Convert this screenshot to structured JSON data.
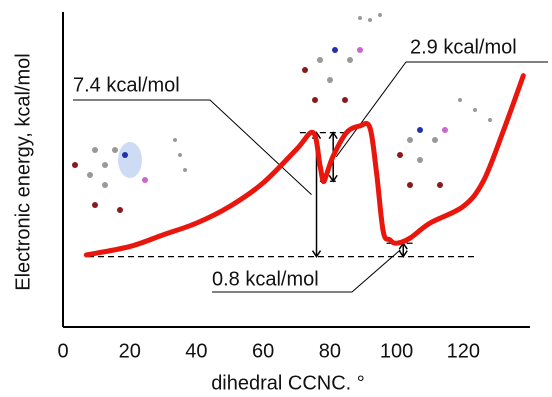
{
  "chart_data": {
    "type": "line",
    "xlabel": "dihedral CCNC. °",
    "ylabel": "Electronic energy, kcal/mol",
    "x": [
      7,
      20,
      30,
      40,
      50,
      60,
      70,
      75,
      77,
      78,
      79,
      81,
      85,
      89,
      92,
      94,
      96,
      98,
      100,
      104,
      110,
      120,
      126,
      132,
      138
    ],
    "series": [
      {
        "color": "#e8160c",
        "values": [
          0.1,
          0.6,
          1.3,
          2.0,
          3.0,
          4.4,
          6.4,
          7.4,
          5.5,
          4.5,
          4.9,
          6.0,
          7.4,
          7.8,
          7.7,
          5.0,
          1.5,
          1.0,
          0.8,
          1.1,
          2.0,
          3.0,
          4.5,
          7.5,
          10.8
        ]
      }
    ],
    "xlim": [
      0,
      140
    ],
    "xticks": [
      0,
      20,
      40,
      60,
      80,
      100,
      120
    ],
    "ylim": [
      -4.2,
      14.6
    ],
    "annotations": [
      "7.4 kcal/mol",
      "2.9 kcal/mol",
      "0.8 kcal/mol"
    ]
  }
}
